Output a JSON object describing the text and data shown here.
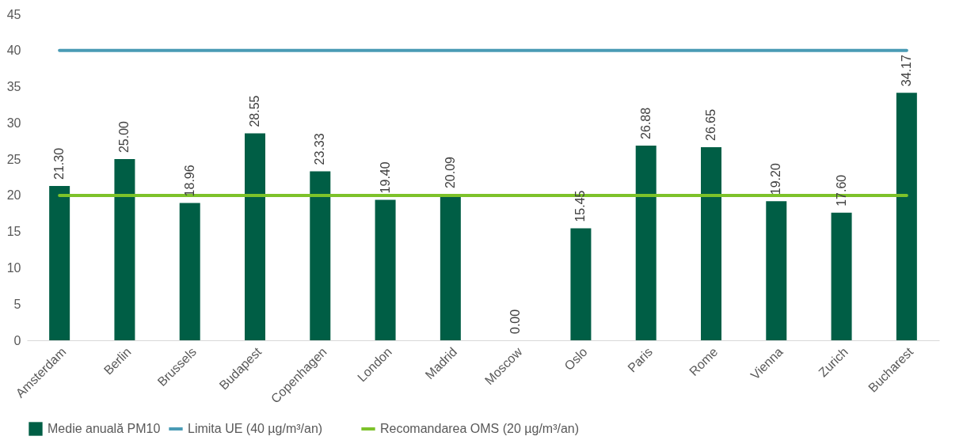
{
  "chart_data": {
    "type": "bar",
    "categories": [
      "Amsterdam",
      "Berlin",
      "Brussels",
      "Budapest",
      "Copenhagen",
      "London",
      "Madrid",
      "Moscow",
      "Oslo",
      "Paris",
      "Rome",
      "Vienna",
      "Zurich",
      "Bucharest"
    ],
    "series": [
      {
        "name": "Medie anuală PM10",
        "color": "#005e45",
        "values": [
          21.3,
          25.0,
          18.96,
          28.55,
          23.33,
          19.4,
          20.09,
          0.0,
          15.45,
          26.88,
          26.65,
          19.2,
          17.6,
          34.17
        ],
        "value_labels": [
          "21.30",
          "25.00",
          "18.96",
          "28.55",
          "23.33",
          "19.40",
          "20.09",
          "0.00",
          "15.45",
          "26.88",
          "26.65",
          "19.20",
          "17.60",
          "34.17"
        ]
      },
      {
        "name": "Limita UE (40 µg/m³/an)",
        "type": "line",
        "color": "#4a9bb5",
        "values": [
          40,
          40,
          40,
          40,
          40,
          40,
          40,
          40,
          40,
          40,
          40,
          40,
          40,
          40
        ]
      },
      {
        "name": "Recomandarea OMS (20 µg/m³/an)",
        "type": "line",
        "color": "#7dc22a",
        "values": [
          20,
          20,
          20,
          20,
          20,
          20,
          20,
          20,
          20,
          20,
          20,
          20,
          20,
          20
        ]
      }
    ],
    "ylim": [
      0,
      45
    ],
    "yticks": [
      0,
      5,
      10,
      15,
      20,
      25,
      30,
      35,
      40,
      45
    ],
    "legend": "bottom"
  }
}
